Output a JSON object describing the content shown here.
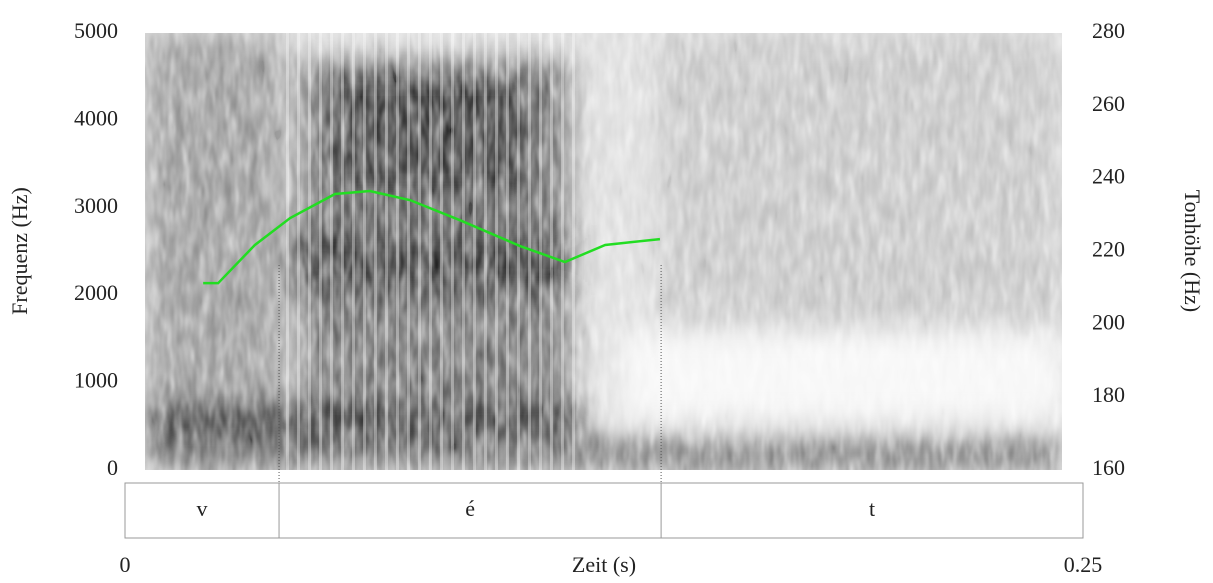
{
  "chart_data": {
    "type": "spectrogram",
    "x_label": "Zeit (s)",
    "y_label": "Frequenz (Hz)",
    "y2_label": "Tonhöhe (Hz)",
    "xlim": [
      0,
      0.25
    ],
    "xticks": [
      0,
      0.25
    ],
    "ylim": [
      0,
      5000
    ],
    "yticks": [
      0,
      1000,
      2000,
      3000,
      4000,
      5000
    ],
    "y2lim": [
      160,
      280
    ],
    "y2ticks": [
      160,
      180,
      200,
      220,
      240,
      260,
      280
    ],
    "series": [
      {
        "color": "#22dd22",
        "axis": "y2",
        "x": [
          0.0204,
          0.0243,
          0.0339,
          0.0431,
          0.0548,
          0.0639,
          0.0744,
          0.0874,
          0.1031,
          0.1148,
          0.1253,
          0.1396
        ],
        "values": [
          211.3,
          211.3,
          221.8,
          229.2,
          235.8,
          236.6,
          234.1,
          228.6,
          221.5,
          217.1,
          221.8,
          223.4
        ]
      }
    ],
    "tier": {
      "boundaries": [
        0.0402,
        0.1399
      ],
      "labels": [
        "v",
        "é",
        "t"
      ]
    }
  }
}
